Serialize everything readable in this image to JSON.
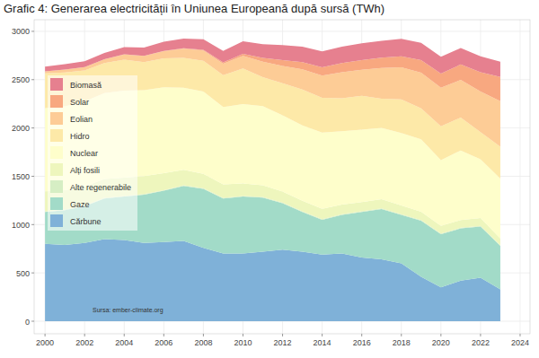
{
  "chart_data": {
    "type": "area",
    "stacked": true,
    "grid": true,
    "legend": "top-left",
    "title": "Grafic 4: Generarea electricității în Uniunea Europeană după sursă (TWh)",
    "annotation": "Sursa: ember-climate.org",
    "x": [
      2000,
      2001,
      2002,
      2003,
      2004,
      2005,
      2006,
      2007,
      2008,
      2009,
      2010,
      2011,
      2012,
      2013,
      2014,
      2015,
      2016,
      2017,
      2018,
      2019,
      2020,
      2021,
      2022,
      2023
    ],
    "xlim": [
      1999.45,
      2024.5
    ],
    "xticks": [
      2000,
      2002,
      2004,
      2006,
      2008,
      2010,
      2012,
      2014,
      2016,
      2018,
      2020,
      2022,
      2024
    ],
    "ylim": [
      -130,
      3120
    ],
    "yticks": [
      0,
      500,
      1000,
      1500,
      2000,
      2500,
      3000
    ],
    "series": [
      {
        "name": "Cărbune",
        "color": "#7fb1d8",
        "values": [
          800,
          790,
          810,
          850,
          840,
          810,
          820,
          830,
          760,
          700,
          700,
          720,
          740,
          720,
          690,
          700,
          660,
          640,
          600,
          460,
          350,
          420,
          450,
          330
        ]
      },
      {
        "name": "Gaze",
        "color": "#a2dbc8",
        "values": [
          330,
          360,
          380,
          420,
          450,
          500,
          530,
          570,
          610,
          570,
          590,
          560,
          480,
          410,
          360,
          400,
          470,
          520,
          500,
          580,
          550,
          540,
          530,
          450
        ]
      },
      {
        "name": "Alte regenerabile",
        "color": "#d6eec4",
        "values": [
          5,
          5,
          5,
          6,
          6,
          6,
          6,
          6,
          6,
          6,
          6,
          6,
          7,
          7,
          7,
          7,
          7,
          7,
          7,
          7,
          7,
          7,
          7,
          7
        ]
      },
      {
        "name": "Alți fosili",
        "color": "#eef6bd",
        "values": [
          210,
          200,
          200,
          195,
          190,
          185,
          175,
          160,
          150,
          140,
          130,
          120,
          115,
          110,
          105,
          100,
          95,
          95,
          90,
          85,
          80,
          80,
          80,
          70
        ]
      },
      {
        "name": "Nuclear",
        "color": "#fefecb",
        "values": [
          860,
          870,
          880,
          890,
          900,
          890,
          890,
          850,
          850,
          800,
          820,
          820,
          790,
          780,
          790,
          760,
          750,
          740,
          750,
          750,
          680,
          720,
          610,
          620
        ]
      },
      {
        "name": "Hidro",
        "color": "#fde9a8",
        "values": [
          360,
          350,
          320,
          310,
          320,
          290,
          300,
          310,
          320,
          330,
          370,
          300,
          330,
          370,
          360,
          340,
          350,
          300,
          350,
          320,
          350,
          340,
          280,
          330
        ]
      },
      {
        "name": "Eolian",
        "color": "#fdcc96",
        "values": [
          20,
          30,
          35,
          40,
          55,
          65,
          75,
          95,
          105,
          120,
          130,
          160,
          180,
          210,
          230,
          270,
          270,
          320,
          330,
          370,
          400,
          390,
          420,
          470
        ]
      },
      {
        "name": "Solar",
        "color": "#f8a880",
        "values": [
          0,
          0,
          0,
          0,
          1,
          1,
          2,
          4,
          7,
          12,
          20,
          40,
          60,
          75,
          85,
          95,
          100,
          105,
          115,
          130,
          145,
          160,
          200,
          250
        ]
      },
      {
        "name": "Biomasă",
        "color": "#e6808f",
        "values": [
          50,
          55,
          60,
          65,
          75,
          85,
          95,
          100,
          110,
          120,
          130,
          140,
          155,
          160,
          165,
          170,
          175,
          175,
          180,
          180,
          175,
          170,
          165,
          160
        ]
      }
    ]
  }
}
